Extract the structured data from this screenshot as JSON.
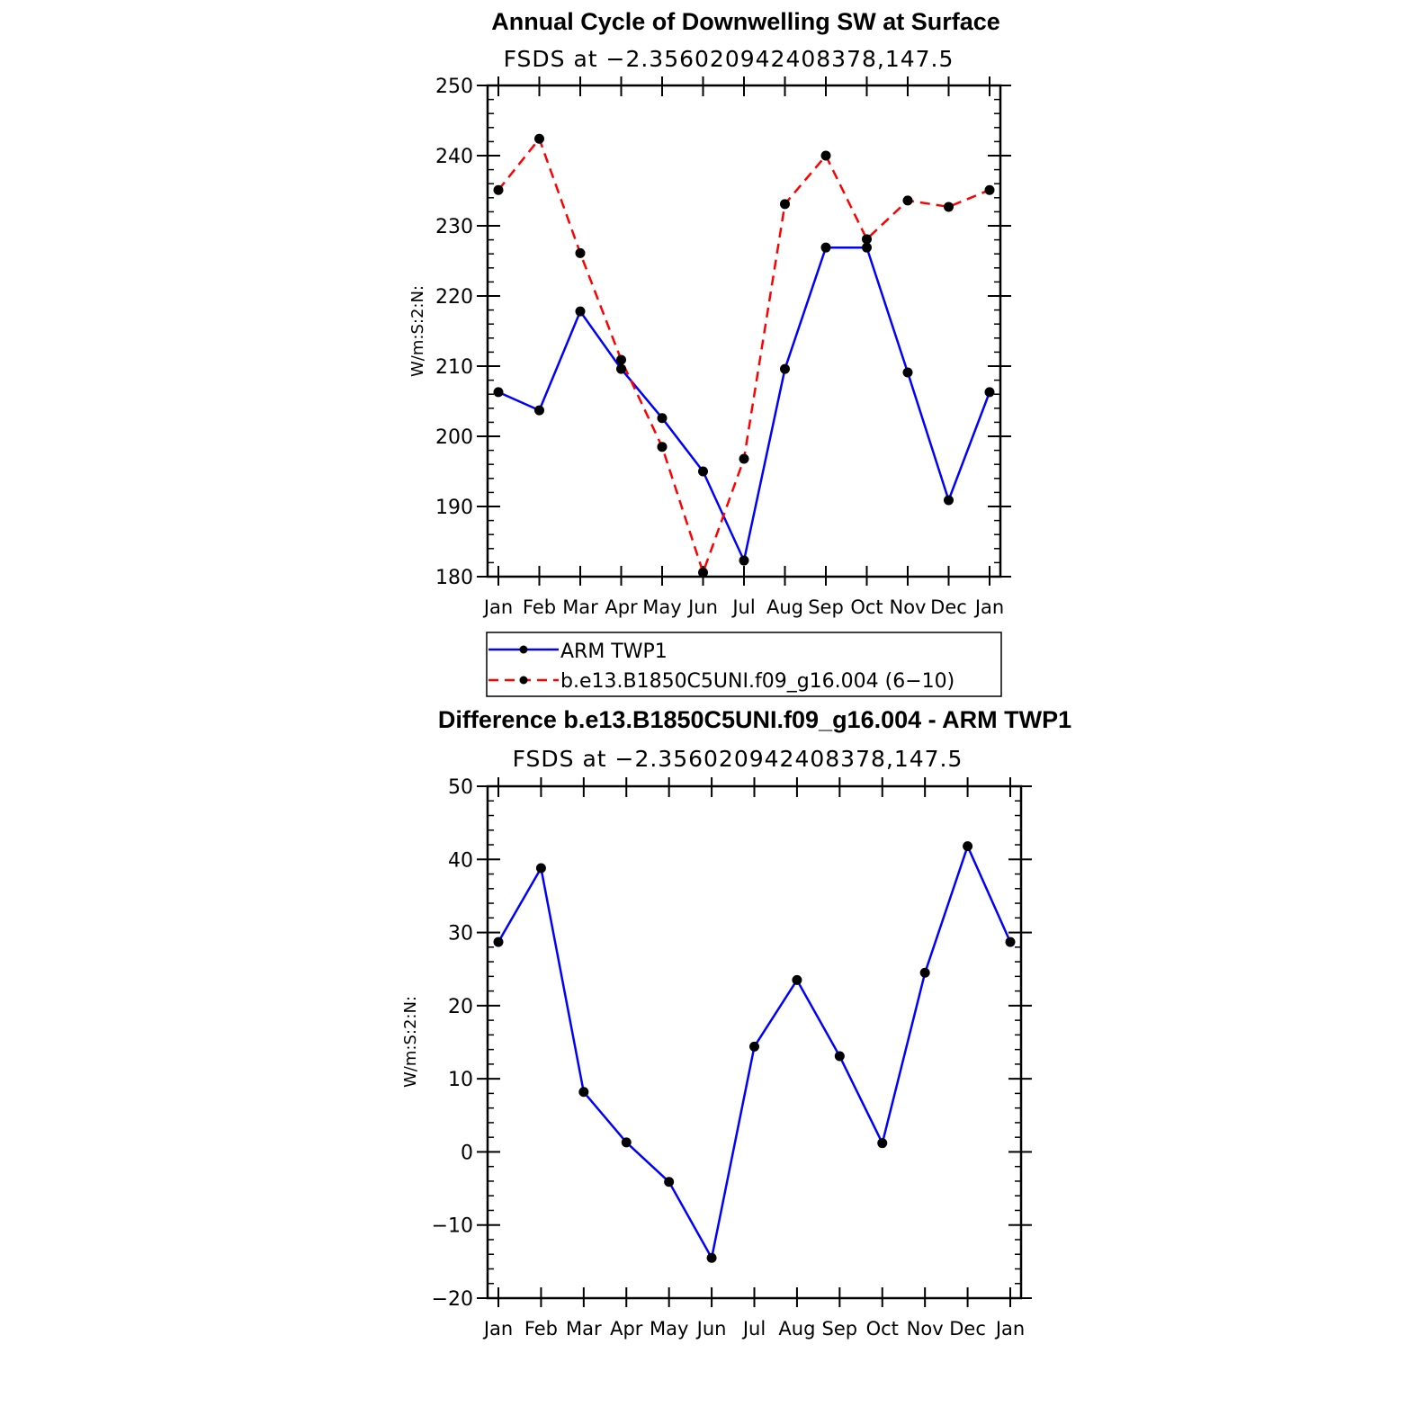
{
  "chart_data": [
    {
      "type": "line",
      "title": "Annual Cycle of Downwelling SW at Surface",
      "subtitle": "FSDS at −2.356020942408378,147.5",
      "ylabel": "W/m:S:2:N:",
      "xlabel": "",
      "categories": [
        "Jan",
        "Feb",
        "Mar",
        "Apr",
        "May",
        "Jun",
        "Jul",
        "Aug",
        "Sep",
        "Oct",
        "Nov",
        "Dec",
        "Jan"
      ],
      "ylim": [
        180,
        250
      ],
      "yticks": [
        "180",
        "190",
        "200",
        "210",
        "220",
        "230",
        "240",
        "250"
      ],
      "legend_position": "bottom",
      "series": [
        {
          "name": "ARM TWP1",
          "color": "#0000ff",
          "dash": "solid",
          "values": [
            206.3,
            203.7,
            217.8,
            209.6,
            202.6,
            195.0,
            182.3,
            209.6,
            226.9,
            226.9,
            209.1,
            190.9,
            206.3
          ]
        },
        {
          "name": "b.e13.B1850C5UNI.f09_g16.004 (6−10)",
          "color": "#ff0000",
          "dash": "dashed",
          "values": [
            235.1,
            242.4,
            226.1,
            210.9,
            198.5,
            180.6,
            196.8,
            233.1,
            240.0,
            228.1,
            233.6,
            232.7,
            235.1
          ]
        }
      ]
    },
    {
      "type": "line",
      "title": "Difference b.e13.B1850C5UNI.f09_g16.004 - ARM TWP1",
      "subtitle": "FSDS at −2.356020942408378,147.5",
      "ylabel": "W/m:S:2:N:",
      "xlabel": "",
      "categories": [
        "Jan",
        "Feb",
        "Mar",
        "Apr",
        "May",
        "Jun",
        "Jul",
        "Aug",
        "Sep",
        "Oct",
        "Nov",
        "Dec",
        "Jan"
      ],
      "ylim": [
        -20,
        50
      ],
      "yticks": [
        "−20",
        "−10",
        "0",
        "10",
        "20",
        "30",
        "40",
        "50"
      ],
      "series": [
        {
          "color": "#0000ff",
          "dash": "solid",
          "values": [
            28.7,
            38.8,
            8.2,
            1.3,
            -4.1,
            -14.5,
            14.4,
            23.5,
            13.1,
            1.2,
            24.5,
            41.8,
            28.7
          ]
        }
      ]
    }
  ]
}
